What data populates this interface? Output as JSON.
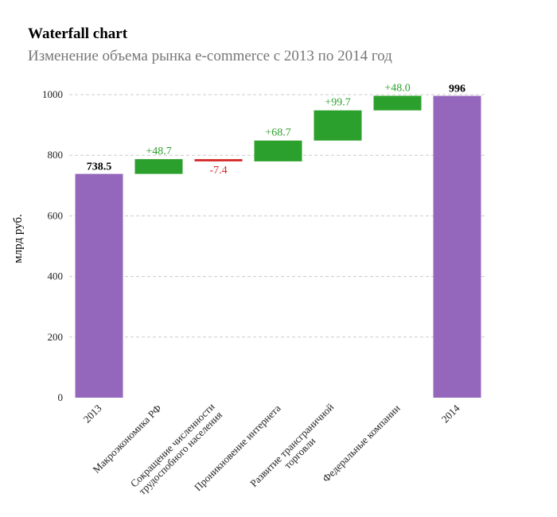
{
  "chart_data": {
    "type": "bar",
    "subtype": "waterfall",
    "title": "Waterfall chart",
    "subtitle": "Изменение объема рынка e-commerce с 2013 по 2014 год",
    "xlabel": "",
    "ylabel": "млрд руб.",
    "ylim": [
      0,
      1000
    ],
    "yticks": [
      0,
      200,
      400,
      600,
      800,
      1000
    ],
    "grid": true,
    "categories": [
      "2013",
      "Макроэкономика РФ",
      "Сокращение численности трудоспобного населения",
      "Проникновение интернета",
      "Развитие трансграничной торговли",
      "Федеральные компании",
      "2014"
    ],
    "category_lines": [
      [
        "2013"
      ],
      [
        "Макроэкономика РФ"
      ],
      [
        "Сокращение численности",
        "трудоспобного населения"
      ],
      [
        "Проникновение интернета"
      ],
      [
        "Развитие трансграничной",
        "торговли"
      ],
      [
        "Федеральные компании"
      ],
      [
        "2014"
      ]
    ],
    "kinds": [
      "total",
      "delta",
      "delta",
      "delta",
      "delta",
      "delta",
      "total"
    ],
    "values": [
      738.5,
      48.7,
      -7.4,
      68.7,
      99.7,
      48.0,
      996
    ],
    "labels": [
      "738.5",
      "+48.7",
      "-7.4",
      "+68.7",
      "+99.7",
      "+48.0",
      "996"
    ],
    "colors": {
      "total": "#9467bd",
      "increase": "#2ca02c",
      "decrease": "#d62728",
      "total_label": "#000000",
      "increase_label": "#2ca02c",
      "decrease_label": "#d62728"
    }
  }
}
